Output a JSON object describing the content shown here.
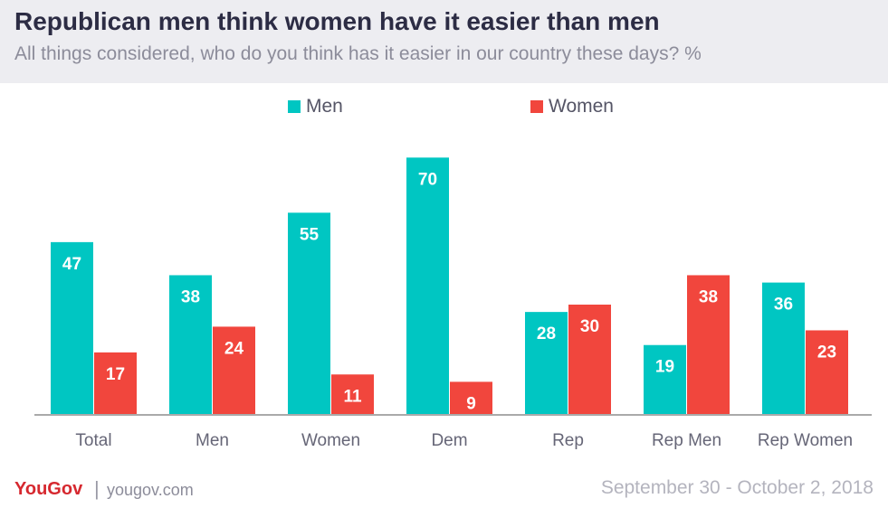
{
  "header": {
    "title": "Republican men think women have it easier than men",
    "subtitle": "All things considered, who do you think has it easier in our country these days? %"
  },
  "colors": {
    "men": "#00c6c2",
    "women": "#f1463d",
    "axis": "#aaaaaa",
    "tick_text": "#666677",
    "value_text": "#ffffff"
  },
  "chart_data": {
    "type": "bar",
    "title": "Republican men think women have it easier than men",
    "subtitle": "All things considered, who do you think has it easier in our country these days? %",
    "categories": [
      "Total",
      "Men",
      "Women",
      "Dem",
      "Rep",
      "Rep Men",
      "Rep Women"
    ],
    "series": [
      {
        "name": "Men",
        "values": [
          47,
          38,
          55,
          70,
          28,
          19,
          36
        ]
      },
      {
        "name": "Women",
        "values": [
          17,
          24,
          11,
          9,
          30,
          38,
          23
        ]
      }
    ],
    "xlabel": "",
    "ylabel": "",
    "ylim": [
      0,
      75
    ],
    "grid": false,
    "legend": "top-center"
  },
  "footer": {
    "logo": "YouGov",
    "separator": "|",
    "site": "yougov.com",
    "date": "September 30 - October 2, 2018"
  }
}
